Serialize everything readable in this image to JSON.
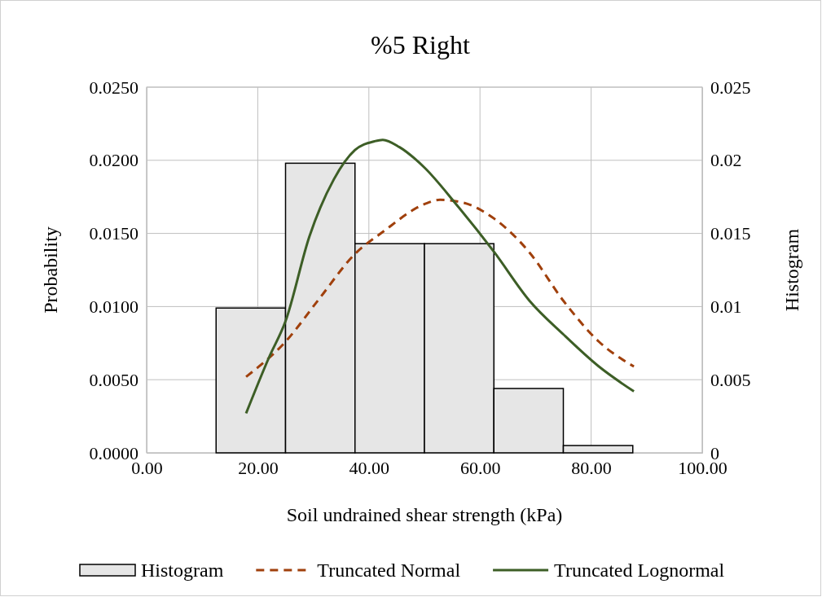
{
  "chart_data": {
    "type": "line",
    "title": "%5 Right",
    "xlabel": "Soil undrained shear strength (kPa)",
    "ylabel": "Probability",
    "y2label": "Histogram",
    "xlim": [
      0,
      100
    ],
    "xticks": [
      {
        "value": 0,
        "label": "0.00"
      },
      {
        "value": 20,
        "label": "20.00"
      },
      {
        "value": 40,
        "label": "40.00"
      },
      {
        "value": 60,
        "label": "60.00"
      },
      {
        "value": 80,
        "label": "80.00"
      },
      {
        "value": 100,
        "label": "100.00"
      }
    ],
    "ylim": [
      0,
      0.025
    ],
    "yticks": [
      {
        "value": 0,
        "label": "0.0000"
      },
      {
        "value": 0.005,
        "label": "0.0050"
      },
      {
        "value": 0.01,
        "label": "0.0100"
      },
      {
        "value": 0.015,
        "label": "0.0150"
      },
      {
        "value": 0.02,
        "label": "0.0200"
      },
      {
        "value": 0.025,
        "label": "0.0250"
      }
    ],
    "y2lim": [
      0,
      0.025
    ],
    "y2ticks": [
      0,
      0.005,
      0.01,
      0.015,
      0.02,
      0.025
    ],
    "grid": true,
    "legend": "bottom",
    "marker": "none",
    "series": [
      {
        "name": "Histogram",
        "type": "histogram",
        "axis": "y2",
        "color": "#e6e6e6",
        "bins": [
          12.5,
          25,
          37.5,
          50,
          62.5,
          75,
          87.5
        ],
        "values": [
          0.0099,
          0.0198,
          0.0143,
          0.0143,
          0.0044,
          0.0005
        ]
      },
      {
        "name": "Truncated Normal",
        "line_style": "dashed",
        "color": "#a0400c",
        "x": [
          17.9,
          25,
          31,
          37.5,
          42.5,
          50,
          52.8,
          57,
          62.6,
          68.9,
          75,
          81.4,
          87.7
        ],
        "values": [
          0.0052,
          0.0076,
          0.0105,
          0.0136,
          0.0151,
          0.017,
          0.0173,
          0.0171,
          0.016,
          0.0137,
          0.0104,
          0.0076,
          0.0059
        ]
      },
      {
        "name": "Truncated Lognormal",
        "line_style": "solid",
        "color": "#3d5e26",
        "x": [
          17.9,
          22,
          25,
          29.3,
          33.7,
          37.5,
          41,
          42.5,
          45.5,
          50,
          55.7,
          62.6,
          68.9,
          75,
          81.4,
          87.7
        ],
        "values": [
          0.0027,
          0.0065,
          0.009,
          0.0148,
          0.0187,
          0.0207,
          0.0213,
          0.0214,
          0.0209,
          0.0195,
          0.017,
          0.0137,
          0.0104,
          0.0081,
          0.0059,
          0.0042
        ]
      }
    ]
  }
}
